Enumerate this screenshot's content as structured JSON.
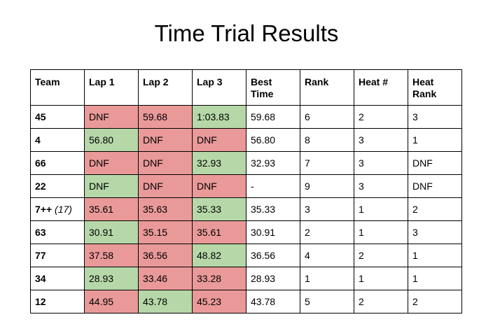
{
  "title": "Time Trial Results",
  "colors": {
    "fail": "#ea9999",
    "good": "#b6d7a8",
    "plain": "#ffffff"
  },
  "table": {
    "headers": [
      "Team",
      "Lap 1",
      "Lap 2",
      "Lap 3",
      "Best Time",
      "Rank",
      "Heat #",
      "Heat Rank"
    ],
    "rows": [
      {
        "team": "45",
        "note": "",
        "laps": [
          "DNF",
          "59.68",
          "1:03.83"
        ],
        "lap_status": [
          "fail",
          "fail",
          "good"
        ],
        "best": "59.68",
        "rank": "6",
        "heat": "2",
        "heat_rank": "3"
      },
      {
        "team": "4",
        "note": "",
        "laps": [
          "56.80",
          "DNF",
          "DNF"
        ],
        "lap_status": [
          "good",
          "fail",
          "fail"
        ],
        "best": "56.80",
        "rank": "8",
        "heat": "3",
        "heat_rank": "1"
      },
      {
        "team": "66",
        "note": "",
        "laps": [
          "DNF",
          "DNF",
          "32.93"
        ],
        "lap_status": [
          "fail",
          "fail",
          "good"
        ],
        "best": "32.93",
        "rank": "7",
        "heat": "3",
        "heat_rank": "DNF"
      },
      {
        "team": "22",
        "note": "",
        "laps": [
          "DNF",
          "DNF",
          "DNF"
        ],
        "lap_status": [
          "good",
          "fail",
          "fail"
        ],
        "best": "-",
        "rank": "9",
        "heat": "3",
        "heat_rank": "DNF"
      },
      {
        "team": "7++",
        "note": "(17)",
        "laps": [
          "35.61",
          "35.63",
          "35.33"
        ],
        "lap_status": [
          "fail",
          "fail",
          "good"
        ],
        "best": "35.33",
        "rank": "3",
        "heat": "1",
        "heat_rank": "2"
      },
      {
        "team": "63",
        "note": "",
        "laps": [
          "30.91",
          "35.15",
          "35.61"
        ],
        "lap_status": [
          "good",
          "fail",
          "fail"
        ],
        "best": "30.91",
        "rank": "2",
        "heat": "1",
        "heat_rank": "3"
      },
      {
        "team": "77",
        "note": "",
        "laps": [
          "37.58",
          "36.56",
          "48.82"
        ],
        "lap_status": [
          "fail",
          "fail",
          "good"
        ],
        "best": "36.56",
        "rank": "4",
        "heat": "2",
        "heat_rank": "1"
      },
      {
        "team": "34",
        "note": "",
        "laps": [
          "28.93",
          "33.46",
          "33.28"
        ],
        "lap_status": [
          "good",
          "fail",
          "fail"
        ],
        "best": "28.93",
        "rank": "1",
        "heat": "1",
        "heat_rank": "1"
      },
      {
        "team": "12",
        "note": "",
        "laps": [
          "44.95",
          "43.78",
          "45.23"
        ],
        "lap_status": [
          "fail",
          "good",
          "fail"
        ],
        "best": "43.78",
        "rank": "5",
        "heat": "2",
        "heat_rank": "2"
      }
    ]
  }
}
